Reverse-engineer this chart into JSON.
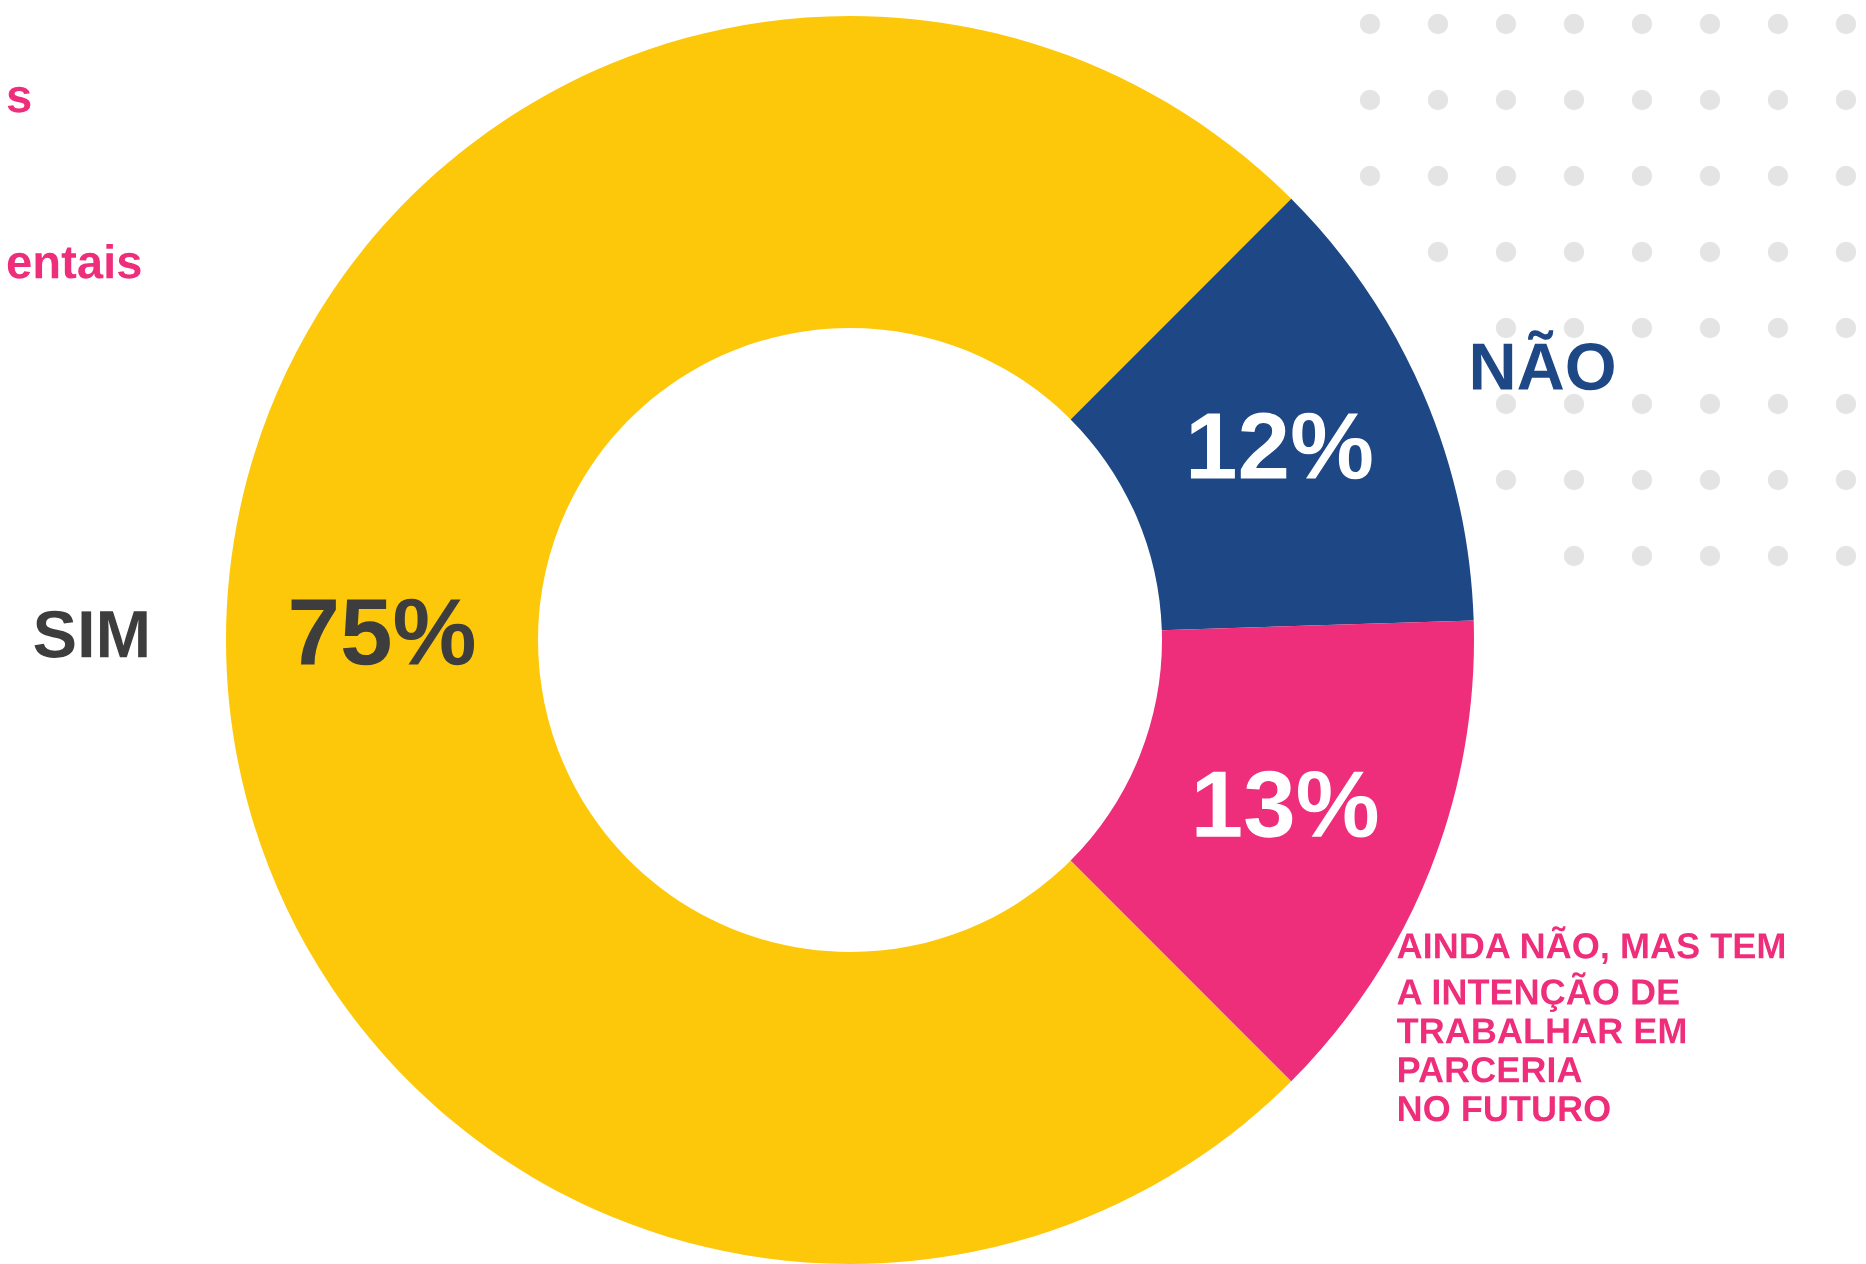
{
  "chart_data": {
    "type": "donut",
    "categories": [
      "SIM",
      "NÃO",
      "AINDA NÃO, MAS TEM\nA INTENÇÃO DE\nTRABALHAR EM\nPARCERIA\nNO FUTURO"
    ],
    "values": [
      75,
      12,
      13
    ],
    "colors": [
      "#fdc80a",
      "#1e4785",
      "#ee2e7b"
    ],
    "value_labels": [
      "75%",
      "12%",
      "13%"
    ],
    "annotations": [
      "s",
      "entais"
    ]
  }
}
